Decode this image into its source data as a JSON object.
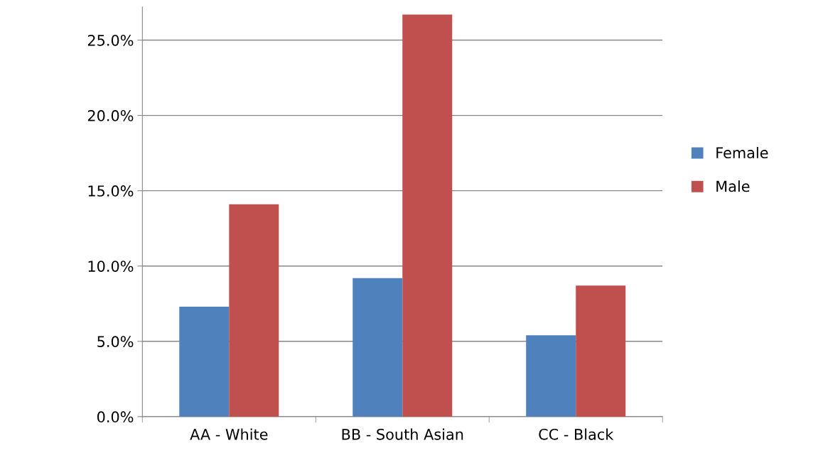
{
  "chart_data": {
    "type": "bar",
    "categories": [
      "AA - White",
      "BB - South Asian",
      "CC - Black"
    ],
    "series": [
      {
        "name": "Female",
        "color": "#4f81bd",
        "values": [
          7.3,
          9.2,
          5.4
        ]
      },
      {
        "name": "Male",
        "color": "#c0504d",
        "values": [
          14.1,
          26.7,
          8.7
        ]
      }
    ],
    "ylim": [
      0,
      27.2
    ],
    "yticks": [
      {
        "value": 0,
        "label": "0.0%"
      },
      {
        "value": 5,
        "label": "5.0%"
      },
      {
        "value": 10,
        "label": "10.0%"
      },
      {
        "value": 15,
        "label": "15.0%"
      },
      {
        "value": 20,
        "label": "20.0%"
      },
      {
        "value": 25,
        "label": "25.0%"
      }
    ],
    "grid": "y",
    "legend": "right"
  }
}
